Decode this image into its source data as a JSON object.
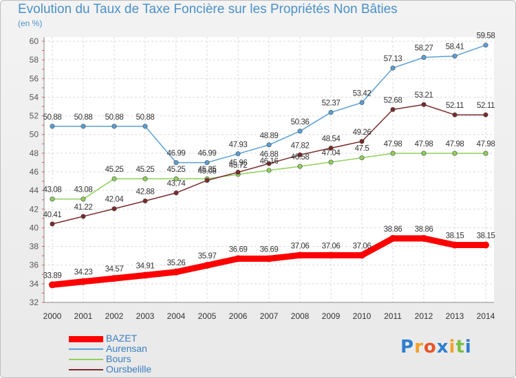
{
  "title": "Evolution du Taux de Taxe Foncière sur les Propriétés Non Bâties",
  "unit": "(en %)",
  "logo": {
    "letters": [
      "P",
      "r",
      "o",
      "x",
      "i",
      "t",
      "i"
    ],
    "colors": [
      "#2e7fcf",
      "#f2a12a",
      "#e7542a",
      "#2e7fcf",
      "#f2a12a",
      "#7bc043",
      "#2e7fcf"
    ]
  },
  "chart_data": {
    "type": "line",
    "title": "Evolution du Taux de Taxe Foncière sur les Propriétés Non Bâties",
    "ylabel": "(en %)",
    "x": [
      2000,
      2001,
      2002,
      2003,
      2004,
      2005,
      2006,
      2007,
      2008,
      2009,
      2010,
      2011,
      2012,
      2013,
      2014
    ],
    "x_tick_labels": [
      "2000",
      "2001",
      "2002",
      "2003",
      "2004",
      "2005",
      "2006",
      "2007",
      "2008",
      "2009",
      "2010",
      "2011",
      "2012",
      "2013",
      "2014"
    ],
    "ylim": [
      32,
      60
    ],
    "y_ticks": [
      32,
      34,
      36,
      38,
      40,
      42,
      44,
      46,
      48,
      50,
      52,
      54,
      56,
      58,
      60
    ],
    "y_tick_labels": [
      "32",
      "34",
      "36",
      "38",
      "40",
      "42",
      "44",
      "46",
      "48",
      "50",
      "52",
      "54",
      "56",
      "58",
      "60"
    ],
    "grid": true,
    "legend_position": "bottom-left",
    "series": [
      {
        "name": "BAZET",
        "color": "#ff0000",
        "values": [
          33.89,
          34.23,
          34.57,
          34.91,
          35.26,
          35.97,
          36.69,
          36.69,
          37.06,
          37.06,
          37.06,
          38.86,
          38.86,
          38.15,
          38.15
        ],
        "labels": [
          "33.89",
          "34.23",
          "34.57",
          "34.91",
          "35.26",
          "35.97",
          "36.69",
          "36.69",
          "37.06",
          "37.06",
          "37.06",
          "38.86",
          "38.86",
          "38.15",
          "38.15"
        ]
      },
      {
        "name": "Aurensan",
        "color": "#5a9fd4",
        "values": [
          50.88,
          50.88,
          50.88,
          50.88,
          46.99,
          46.99,
          47.93,
          48.89,
          50.36,
          52.37,
          53.42,
          57.13,
          58.27,
          58.41,
          59.58
        ],
        "labels": [
          "50.88",
          "50.88",
          "50.88",
          "50.88",
          "46.99",
          "46.99",
          "47.93",
          "48.89",
          "50.36",
          "52.37",
          "53.42",
          "57.13",
          "58.27",
          "58.41",
          "59.58"
        ]
      },
      {
        "name": "Bours",
        "color": "#8fd05a",
        "values": [
          43.08,
          43.08,
          45.25,
          45.25,
          45.25,
          45.25,
          45.72,
          46.16,
          46.58,
          47.04,
          47.5,
          47.98,
          47.98,
          47.98,
          47.98
        ],
        "labels": [
          "43.08",
          "43.08",
          "45.25",
          "45.25",
          "45.25",
          "45.25",
          "45.72",
          "46.16",
          "46.58",
          "47.04",
          "47.5",
          "47.98",
          "47.98",
          "47.98",
          "47.98"
        ]
      },
      {
        "name": "Oursbelille",
        "color": "#7a2a2a",
        "values": [
          40.41,
          41.22,
          42.04,
          42.88,
          43.74,
          45.08,
          45.96,
          46.88,
          47.82,
          48.54,
          49.26,
          52.68,
          53.21,
          52.11,
          52.11
        ],
        "labels": [
          "40.41",
          "41.22",
          "42.04",
          "42.88",
          "43.74",
          "45.08",
          "45.96",
          "46.88",
          "47.82",
          "48.54",
          "49.26",
          "52.68",
          "53.21",
          "52.11",
          "52.11"
        ]
      }
    ]
  }
}
